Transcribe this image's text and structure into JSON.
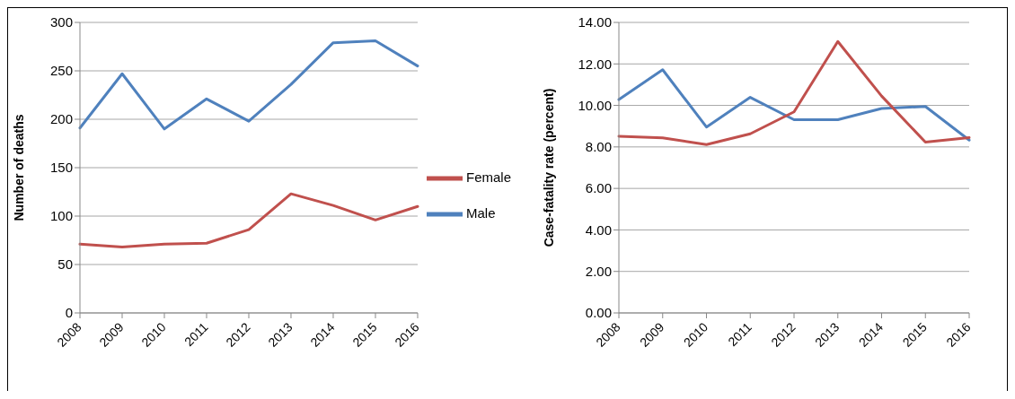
{
  "chart_data": [
    {
      "type": "line",
      "categories": [
        "2008",
        "2009",
        "2010",
        "2011",
        "2012",
        "2013",
        "2014",
        "2015",
        "2016"
      ],
      "ylabel": "Number of deaths",
      "ylim": [
        0,
        300
      ],
      "yticks": [
        0,
        50,
        100,
        150,
        200,
        250,
        300
      ],
      "grid": "y",
      "legend": "right",
      "marker": "none",
      "line_style": "solid",
      "series": [
        {
          "name": "Male",
          "color": "#4f81bd",
          "values": [
            191,
            247,
            190,
            221,
            198,
            236,
            279,
            281,
            255
          ]
        },
        {
          "name": "Female",
          "color": "#c0504d",
          "values": [
            71,
            68,
            71,
            72,
            86,
            123,
            111,
            96,
            110
          ]
        }
      ]
    },
    {
      "type": "line",
      "categories": [
        "2008",
        "2009",
        "2010",
        "2011",
        "2012",
        "2013",
        "2014",
        "2015",
        "2016"
      ],
      "ylabel": "Case-fatality rate (percent)",
      "ylim": [
        0,
        14
      ],
      "yticks": [
        {
          "value": 0,
          "label": "0.00"
        },
        {
          "value": 2,
          "label": "2.00"
        },
        {
          "value": 4,
          "label": "4.00"
        },
        {
          "value": 6,
          "label": "6.00"
        },
        {
          "value": 8,
          "label": "8.00"
        },
        {
          "value": 10,
          "label": "10.00"
        },
        {
          "value": 12,
          "label": "12.00"
        },
        {
          "value": 14,
          "label": "14.00"
        }
      ],
      "grid": "y",
      "marker": "none",
      "line_style": "solid",
      "series": [
        {
          "color": "#4f81bd",
          "values": [
            10.28,
            11.72,
            8.96,
            10.39,
            9.31,
            9.31,
            9.85,
            9.95,
            8.33
          ]
        },
        {
          "color": "#c0504d",
          "values": [
            8.51,
            8.44,
            8.11,
            8.63,
            9.69,
            13.08,
            10.45,
            8.23,
            8.45
          ]
        }
      ]
    }
  ]
}
